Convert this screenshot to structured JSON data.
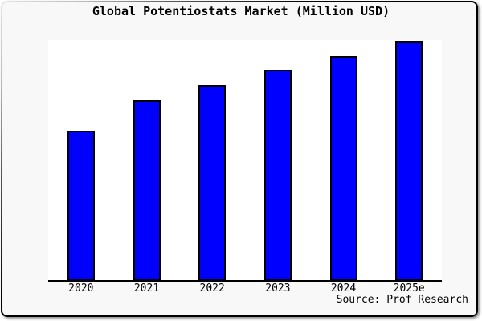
{
  "chart_data": {
    "type": "bar",
    "title": "Global Potentiostats Market (Million USD)",
    "categories": [
      "2020",
      "2021",
      "2022",
      "2023",
      "2024",
      "2025e"
    ],
    "values": [
      62.5,
      75.3,
      81.6,
      88.0,
      93.6,
      100.0
    ],
    "values_unit": "percent of tallest bar (no y-axis scale or value labels shown in image)",
    "ylim": [
      0,
      100
    ],
    "xlabel": "",
    "ylabel": "",
    "grid": false,
    "legend": "none",
    "source": "Source: Prof Research",
    "colors": {
      "bar_fill": "#0000ff",
      "bar_border": "#000000",
      "page_background": "#f8f8f8",
      "plot_background": "#ffffff",
      "axis": "#000000",
      "text": "#000000"
    }
  }
}
